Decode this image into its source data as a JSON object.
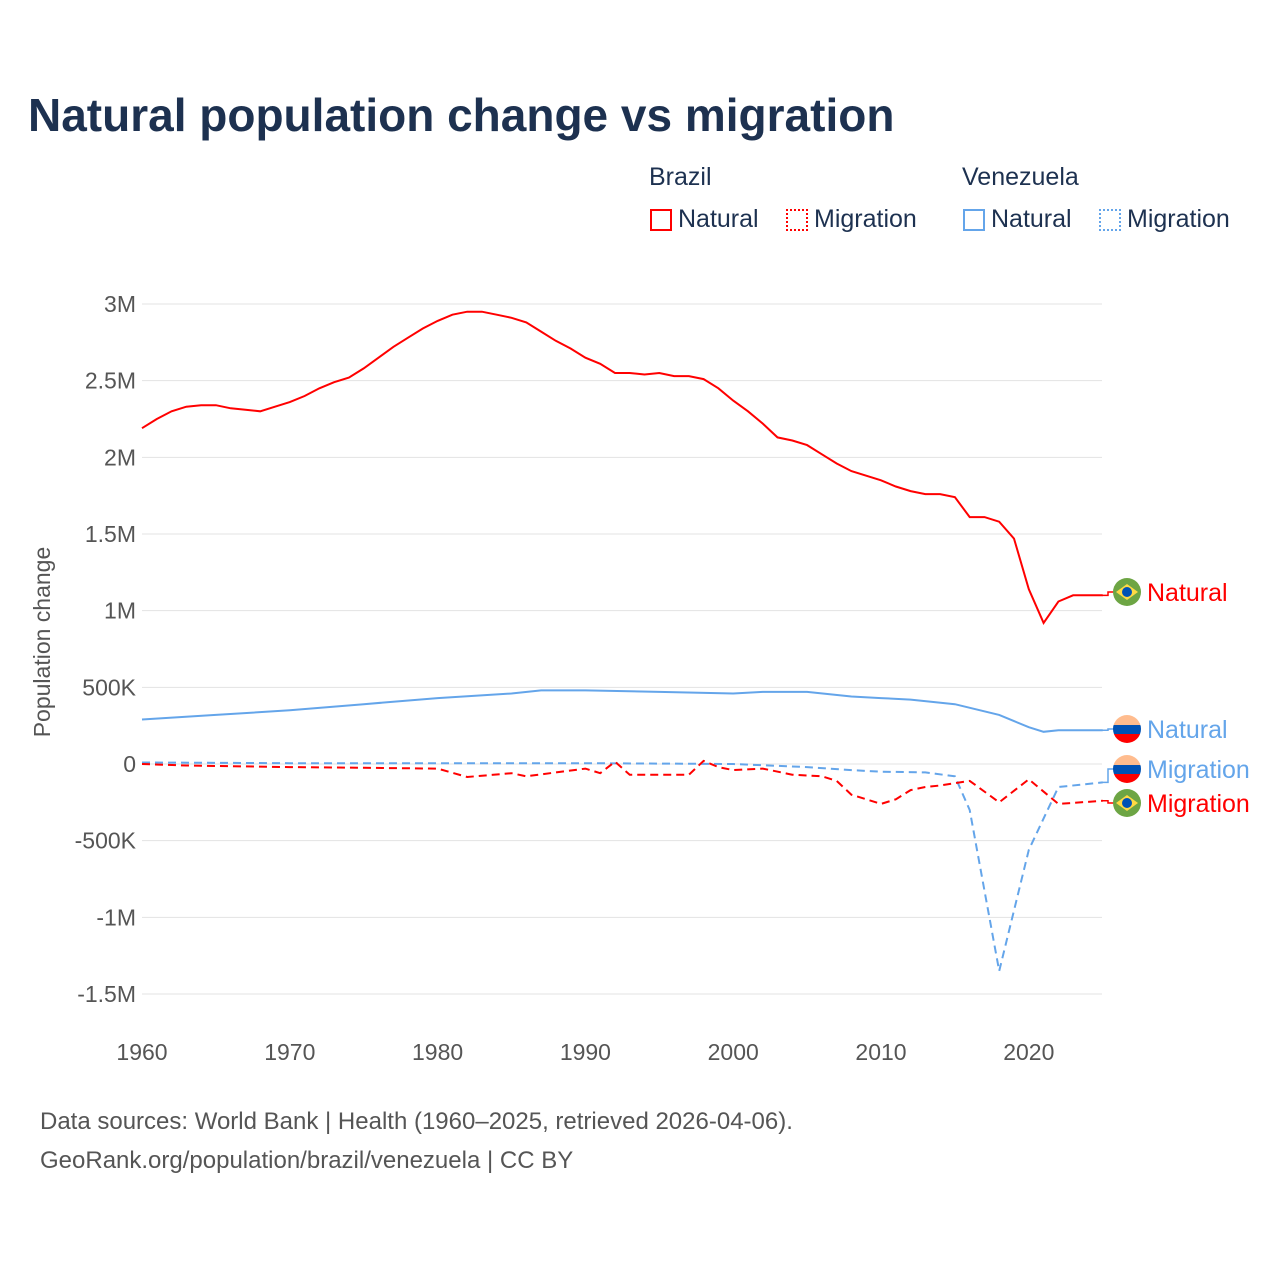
{
  "title": "Natural population change vs migration",
  "legend": {
    "groups": [
      {
        "name": "Brazil",
        "items": [
          {
            "label": "Natural",
            "style": "solid"
          },
          {
            "label": "Migration",
            "style": "dotted"
          }
        ],
        "color": "#ff0000"
      },
      {
        "name": "Venezuela",
        "items": [
          {
            "label": "Natural",
            "style": "solid"
          },
          {
            "label": "Migration",
            "style": "dotted"
          }
        ],
        "color": "#64a5ea"
      }
    ]
  },
  "footer": {
    "line1": "Data sources: World Bank | Health (1960–2025, retrieved 2026-04-06).",
    "line2": "GeoRank.org/population/brazil/venezuela | CC BY"
  },
  "chart_data": {
    "type": "line",
    "title": "Natural population change vs migration",
    "xlabel": "",
    "ylabel": "Population change",
    "xlim": [
      1960,
      2025
    ],
    "ylim": [
      -1500000,
      3000000
    ],
    "xticks": [
      {
        "v": 1960,
        "label": "1960"
      },
      {
        "v": 1970,
        "label": "1970"
      },
      {
        "v": 1980,
        "label": "1980"
      },
      {
        "v": 1990,
        "label": "1990"
      },
      {
        "v": 2000,
        "label": "2000"
      },
      {
        "v": 2010,
        "label": "2010"
      },
      {
        "v": 2020,
        "label": "2020"
      }
    ],
    "yticks": [
      {
        "v": 3000000,
        "label": "3M"
      },
      {
        "v": 2500000,
        "label": "2.5M"
      },
      {
        "v": 2000000,
        "label": "2M"
      },
      {
        "v": 1500000,
        "label": "1.5M"
      },
      {
        "v": 1000000,
        "label": "1M"
      },
      {
        "v": 500000,
        "label": "500K"
      },
      {
        "v": 0,
        "label": "0"
      },
      {
        "v": -500000,
        "label": "-500K"
      },
      {
        "v": -1000000,
        "label": "-1M"
      },
      {
        "v": -1500000,
        "label": "-1.5M"
      }
    ],
    "grid": true,
    "series": [
      {
        "name": "Brazil Natural",
        "end_label": "Natural",
        "color": "#ff0000",
        "dash": false,
        "flag": "brazil",
        "label_offset": 0,
        "x": [
          1960,
          1961,
          1962,
          1963,
          1964,
          1965,
          1966,
          1967,
          1968,
          1969,
          1970,
          1971,
          1972,
          1973,
          1974,
          1975,
          1976,
          1977,
          1978,
          1979,
          1980,
          1981,
          1982,
          1983,
          1984,
          1985,
          1986,
          1987,
          1988,
          1989,
          1990,
          1991,
          1992,
          1993,
          1994,
          1995,
          1996,
          1997,
          1998,
          1999,
          2000,
          2001,
          2002,
          2003,
          2004,
          2005,
          2006,
          2007,
          2008,
          2009,
          2010,
          2011,
          2012,
          2013,
          2014,
          2015,
          2016,
          2017,
          2018,
          2019,
          2020,
          2021,
          2022,
          2023,
          2024,
          2025
        ],
        "y": [
          2190000,
          2250000,
          2300000,
          2330000,
          2340000,
          2340000,
          2320000,
          2310000,
          2300000,
          2330000,
          2360000,
          2400000,
          2450000,
          2490000,
          2520000,
          2580000,
          2650000,
          2720000,
          2780000,
          2840000,
          2890000,
          2930000,
          2950000,
          2950000,
          2930000,
          2910000,
          2880000,
          2820000,
          2760000,
          2710000,
          2650000,
          2610000,
          2550000,
          2550000,
          2540000,
          2550000,
          2530000,
          2530000,
          2510000,
          2450000,
          2370000,
          2300000,
          2220000,
          2130000,
          2110000,
          2080000,
          2020000,
          1960000,
          1910000,
          1880000,
          1850000,
          1810000,
          1780000,
          1760000,
          1760000,
          1740000,
          1610000,
          1610000,
          1580000,
          1470000,
          1140000,
          920000,
          1060000,
          1100000,
          1100000,
          1100000
        ]
      },
      {
        "name": "Venezuela Natural",
        "end_label": "Natural",
        "color": "#64a5ea",
        "dash": false,
        "flag": "venezuela",
        "label_offset": 0,
        "x": [
          1960,
          1965,
          1970,
          1975,
          1980,
          1985,
          1987,
          1990,
          1995,
          2000,
          2002,
          2005,
          2008,
          2010,
          2012,
          2015,
          2018,
          2019,
          2020,
          2021,
          2022,
          2025
        ],
        "y": [
          290000,
          320000,
          350000,
          390000,
          430000,
          460000,
          480000,
          480000,
          470000,
          460000,
          470000,
          470000,
          440000,
          430000,
          420000,
          390000,
          320000,
          280000,
          240000,
          210000,
          220000,
          220000
        ]
      },
      {
        "name": "Venezuela Migration",
        "end_label": "Migration",
        "color": "#64a5ea",
        "dash": true,
        "flag": "venezuela",
        "label_offset": 0,
        "x": [
          1960,
          1970,
          1980,
          1990,
          2000,
          2005,
          2008,
          2010,
          2013,
          2015,
          2016,
          2018,
          2020,
          2022,
          2025
        ],
        "y": [
          10000,
          5000,
          5000,
          5000,
          0,
          -20000,
          -40000,
          -50000,
          -55000,
          -80000,
          -300000,
          -1350000,
          -560000,
          -150000,
          -120000
        ]
      },
      {
        "name": "Brazil Migration",
        "end_label": "Migration",
        "color": "#ff0000",
        "dash": true,
        "flag": "brazil",
        "label_offset": 0,
        "x": [
          1960,
          1963,
          1970,
          1975,
          1980,
          1982,
          1985,
          1986,
          1990,
          1991,
          1992,
          1993,
          1997,
          1998,
          1999,
          2000,
          2002,
          2004,
          2006,
          2007,
          2008,
          2010,
          2011,
          2012,
          2013,
          2014,
          2016,
          2018,
          2020,
          2022,
          2025
        ],
        "y": [
          0,
          -10000,
          -20000,
          -25000,
          -30000,
          -85000,
          -60000,
          -80000,
          -30000,
          -60000,
          15000,
          -70000,
          -70000,
          20000,
          -20000,
          -40000,
          -30000,
          -70000,
          -80000,
          -110000,
          -200000,
          -260000,
          -230000,
          -170000,
          -150000,
          -140000,
          -110000,
          -250000,
          -100000,
          -260000,
          -240000
        ]
      }
    ]
  }
}
